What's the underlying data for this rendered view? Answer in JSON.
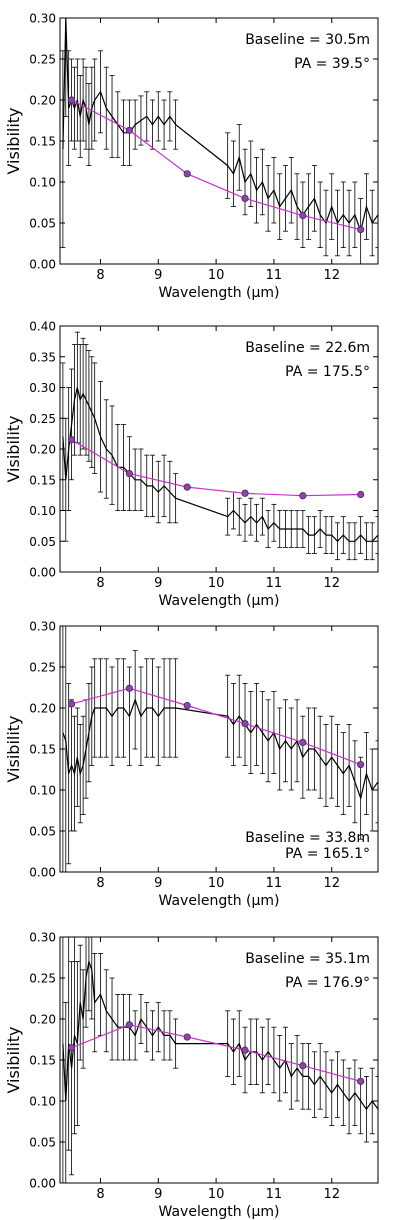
{
  "chart_data": [
    {
      "type": "line",
      "title": "",
      "xlabel": "Wavelength (μm)",
      "ylabel": "Visibility",
      "xlim": [
        7.3,
        12.8
      ],
      "ylim": [
        0.0,
        0.3
      ],
      "xticks": [
        8,
        9,
        10,
        11,
        12
      ],
      "yticks": [
        0.0,
        0.05,
        0.1,
        0.15,
        0.2,
        0.25,
        0.3
      ],
      "yticklabels": [
        "0.00",
        "0.05",
        "0.10",
        "0.15",
        "0.20",
        "0.25",
        "0.30"
      ],
      "grid": false,
      "annotations": [
        "Baseline = 30.5m",
        "PA = 39.5°"
      ],
      "annotation_anchor": "right",
      "series": [
        {
          "kind": "observed",
          "color": "#000000",
          "x": [
            7.35,
            7.4,
            7.45,
            7.5,
            7.55,
            7.6,
            7.65,
            7.7,
            7.75,
            7.8,
            7.85,
            7.9,
            8.0,
            8.1,
            8.2,
            8.3,
            8.4,
            8.5,
            8.6,
            8.7,
            8.8,
            8.9,
            9.0,
            9.1,
            9.2,
            9.3,
            10.2,
            10.3,
            10.4,
            10.5,
            10.6,
            10.7,
            10.8,
            10.9,
            11.0,
            11.1,
            11.2,
            11.3,
            11.4,
            11.5,
            11.6,
            11.7,
            11.8,
            11.9,
            12.0,
            12.1,
            12.2,
            12.3,
            12.4,
            12.5,
            12.6,
            12.7,
            12.8
          ],
          "y": [
            0.14,
            0.3,
            0.19,
            0.2,
            0.19,
            0.2,
            0.18,
            0.2,
            0.19,
            0.17,
            0.19,
            0.2,
            0.21,
            0.19,
            0.18,
            0.17,
            0.16,
            0.16,
            0.17,
            0.175,
            0.18,
            0.17,
            0.18,
            0.17,
            0.18,
            0.17,
            0.12,
            0.11,
            0.13,
            0.1,
            0.11,
            0.09,
            0.1,
            0.08,
            0.09,
            0.07,
            0.08,
            0.09,
            0.07,
            0.06,
            0.07,
            0.08,
            0.06,
            0.05,
            0.07,
            0.05,
            0.06,
            0.05,
            0.06,
            0.04,
            0.07,
            0.05,
            0.06
          ],
          "err": [
            0.12,
            0.12,
            0.07,
            0.05,
            0.05,
            0.05,
            0.05,
            0.05,
            0.05,
            0.05,
            0.05,
            0.05,
            0.05,
            0.05,
            0.05,
            0.04,
            0.04,
            0.04,
            0.03,
            0.03,
            0.03,
            0.03,
            0.03,
            0.03,
            0.03,
            0.03,
            0.04,
            0.04,
            0.04,
            0.04,
            0.04,
            0.04,
            0.04,
            0.04,
            0.04,
            0.04,
            0.04,
            0.04,
            0.04,
            0.04,
            0.04,
            0.04,
            0.04,
            0.04,
            0.04,
            0.04,
            0.04,
            0.04,
            0.04,
            0.04,
            0.04,
            0.04,
            0.04
          ]
        },
        {
          "kind": "model",
          "color": "#cc33cc",
          "marker_color": "#8e44ad",
          "x": [
            7.5,
            8.5,
            9.5,
            10.5,
            11.5,
            12.5
          ],
          "y": [
            0.2,
            0.163,
            0.11,
            0.08,
            0.059,
            0.042
          ]
        }
      ]
    },
    {
      "type": "line",
      "title": "",
      "xlabel": "Wavelength (μm)",
      "ylabel": "Visibility",
      "xlim": [
        7.3,
        12.8
      ],
      "ylim": [
        0.0,
        0.4
      ],
      "xticks": [
        8,
        9,
        10,
        11,
        12
      ],
      "yticks": [
        0.0,
        0.05,
        0.1,
        0.15,
        0.2,
        0.25,
        0.3,
        0.35,
        0.4
      ],
      "yticklabels": [
        "0.00",
        "0.05",
        "0.10",
        "0.15",
        "0.20",
        "0.25",
        "0.30",
        "0.35",
        "0.40"
      ],
      "grid": false,
      "annotations": [
        "Baseline = 22.6m",
        "PA = 175.5°"
      ],
      "annotation_anchor": "right",
      "series": [
        {
          "kind": "observed",
          "color": "#000000",
          "x": [
            7.35,
            7.4,
            7.45,
            7.5,
            7.55,
            7.6,
            7.65,
            7.7,
            7.75,
            7.8,
            7.85,
            7.9,
            8.0,
            8.1,
            8.2,
            8.3,
            8.4,
            8.5,
            8.6,
            8.7,
            8.8,
            8.9,
            9.0,
            9.1,
            9.2,
            9.3,
            10.2,
            10.3,
            10.4,
            10.5,
            10.6,
            10.7,
            10.8,
            10.9,
            11.0,
            11.1,
            11.2,
            11.3,
            11.4,
            11.5,
            11.6,
            11.7,
            11.8,
            11.9,
            12.0,
            12.1,
            12.2,
            12.3,
            12.4,
            12.5,
            12.6,
            12.7,
            12.8
          ],
          "y": [
            0.22,
            0.15,
            0.2,
            0.24,
            0.28,
            0.3,
            0.28,
            0.29,
            0.28,
            0.27,
            0.26,
            0.25,
            0.22,
            0.2,
            0.19,
            0.17,
            0.17,
            0.16,
            0.15,
            0.15,
            0.14,
            0.14,
            0.13,
            0.14,
            0.13,
            0.12,
            0.09,
            0.1,
            0.09,
            0.08,
            0.09,
            0.08,
            0.09,
            0.07,
            0.08,
            0.07,
            0.07,
            0.07,
            0.07,
            0.07,
            0.06,
            0.06,
            0.07,
            0.06,
            0.06,
            0.05,
            0.06,
            0.05,
            0.05,
            0.06,
            0.05,
            0.05,
            0.06
          ],
          "err": [
            0.12,
            0.1,
            0.1,
            0.09,
            0.09,
            0.09,
            0.09,
            0.09,
            0.09,
            0.09,
            0.09,
            0.09,
            0.09,
            0.08,
            0.08,
            0.07,
            0.07,
            0.06,
            0.05,
            0.05,
            0.05,
            0.05,
            0.05,
            0.05,
            0.05,
            0.04,
            0.03,
            0.03,
            0.03,
            0.03,
            0.03,
            0.03,
            0.03,
            0.03,
            0.03,
            0.03,
            0.03,
            0.03,
            0.03,
            0.03,
            0.03,
            0.03,
            0.03,
            0.03,
            0.03,
            0.03,
            0.03,
            0.03,
            0.03,
            0.03,
            0.03,
            0.03,
            0.03
          ]
        },
        {
          "kind": "model",
          "color": "#cc33cc",
          "marker_color": "#8e44ad",
          "x": [
            7.5,
            8.5,
            9.5,
            10.5,
            11.5,
            12.5
          ],
          "y": [
            0.215,
            0.16,
            0.138,
            0.128,
            0.124,
            0.126
          ]
        }
      ]
    },
    {
      "type": "line",
      "title": "",
      "xlabel": "Wavelength (μm)",
      "ylabel": "Visibility",
      "xlim": [
        7.3,
        12.8
      ],
      "ylim": [
        0.0,
        0.3
      ],
      "xticks": [
        8,
        9,
        10,
        11,
        12
      ],
      "yticks": [
        0.0,
        0.05,
        0.1,
        0.15,
        0.2,
        0.25,
        0.3
      ],
      "yticklabels": [
        "0.00",
        "0.05",
        "0.10",
        "0.15",
        "0.20",
        "0.25",
        "0.30"
      ],
      "grid": false,
      "annotations": [
        "Baseline = 33.8m",
        "PA = 165.1°"
      ],
      "annotation_anchor": "right-bottom",
      "series": [
        {
          "kind": "observed",
          "color": "#000000",
          "x": [
            7.35,
            7.4,
            7.45,
            7.5,
            7.55,
            7.6,
            7.65,
            7.7,
            7.75,
            7.8,
            7.85,
            7.9,
            8.0,
            8.1,
            8.2,
            8.3,
            8.4,
            8.5,
            8.6,
            8.7,
            8.8,
            8.9,
            9.0,
            9.1,
            9.2,
            9.3,
            10.2,
            10.3,
            10.4,
            10.5,
            10.6,
            10.7,
            10.8,
            10.9,
            11.0,
            11.1,
            11.2,
            11.3,
            11.4,
            11.5,
            11.6,
            11.7,
            11.8,
            11.9,
            12.0,
            12.1,
            12.2,
            12.3,
            12.4,
            12.5,
            12.6,
            12.7,
            12.8
          ],
          "y": [
            0.17,
            0.16,
            0.12,
            0.13,
            0.12,
            0.14,
            0.12,
            0.13,
            0.15,
            0.17,
            0.19,
            0.2,
            0.2,
            0.2,
            0.19,
            0.2,
            0.2,
            0.19,
            0.21,
            0.19,
            0.2,
            0.2,
            0.19,
            0.2,
            0.2,
            0.2,
            0.19,
            0.18,
            0.19,
            0.18,
            0.17,
            0.18,
            0.17,
            0.16,
            0.17,
            0.15,
            0.16,
            0.15,
            0.16,
            0.14,
            0.15,
            0.15,
            0.14,
            0.13,
            0.14,
            0.13,
            0.12,
            0.13,
            0.11,
            0.09,
            0.12,
            0.1,
            0.11
          ],
          "err": [
            0.3,
            0.2,
            0.11,
            0.08,
            0.07,
            0.06,
            0.06,
            0.06,
            0.06,
            0.06,
            0.06,
            0.06,
            0.06,
            0.06,
            0.06,
            0.06,
            0.06,
            0.06,
            0.06,
            0.06,
            0.06,
            0.06,
            0.06,
            0.06,
            0.06,
            0.06,
            0.05,
            0.05,
            0.05,
            0.05,
            0.05,
            0.05,
            0.05,
            0.05,
            0.05,
            0.05,
            0.05,
            0.05,
            0.05,
            0.05,
            0.05,
            0.05,
            0.05,
            0.05,
            0.05,
            0.05,
            0.05,
            0.05,
            0.05,
            0.05,
            0.05,
            0.05,
            0.05
          ]
        },
        {
          "kind": "model",
          "color": "#cc33cc",
          "marker_color": "#8e44ad",
          "x": [
            7.5,
            8.5,
            9.5,
            10.5,
            11.5,
            12.5
          ],
          "y": [
            0.205,
            0.224,
            0.203,
            0.181,
            0.158,
            0.131
          ]
        }
      ]
    },
    {
      "type": "line",
      "title": "",
      "xlabel": "Wavelength (μm)",
      "ylabel": "Visibility",
      "xlim": [
        7.3,
        12.8
      ],
      "ylim": [
        0.0,
        0.3
      ],
      "xticks": [
        8,
        9,
        10,
        11,
        12
      ],
      "yticks": [
        0.0,
        0.05,
        0.1,
        0.15,
        0.2,
        0.25,
        0.3
      ],
      "yticklabels": [
        "0.00",
        "0.05",
        "0.10",
        "0.15",
        "0.20",
        "0.25",
        "0.30"
      ],
      "grid": false,
      "annotations": [
        "Baseline = 35.1m",
        "PA = 176.9°"
      ],
      "annotation_anchor": "right",
      "series": [
        {
          "kind": "observed",
          "color": "#000000",
          "x": [
            7.35,
            7.4,
            7.45,
            7.5,
            7.55,
            7.6,
            7.65,
            7.7,
            7.75,
            7.8,
            7.85,
            7.9,
            8.0,
            8.1,
            8.2,
            8.3,
            8.4,
            8.5,
            8.6,
            8.7,
            8.8,
            8.9,
            9.0,
            9.1,
            9.2,
            9.3,
            10.2,
            10.3,
            10.4,
            10.5,
            10.6,
            10.7,
            10.8,
            10.9,
            11.0,
            11.1,
            11.2,
            11.3,
            11.4,
            11.5,
            11.6,
            11.7,
            11.8,
            11.9,
            12.0,
            12.1,
            12.2,
            12.3,
            12.4,
            12.5,
            12.6,
            12.7,
            12.8
          ],
          "y": [
            0.17,
            0.1,
            0.17,
            0.14,
            0.18,
            0.17,
            0.22,
            0.2,
            0.25,
            0.27,
            0.26,
            0.22,
            0.23,
            0.21,
            0.2,
            0.19,
            0.19,
            0.19,
            0.18,
            0.2,
            0.19,
            0.18,
            0.19,
            0.18,
            0.18,
            0.17,
            0.17,
            0.16,
            0.17,
            0.15,
            0.16,
            0.16,
            0.15,
            0.16,
            0.15,
            0.14,
            0.15,
            0.13,
            0.14,
            0.13,
            0.13,
            0.12,
            0.13,
            0.12,
            0.11,
            0.12,
            0.11,
            0.1,
            0.11,
            0.1,
            0.09,
            0.1,
            0.09
          ],
          "err": [
            0.2,
            0.12,
            0.13,
            0.13,
            0.12,
            0.1,
            0.07,
            0.06,
            0.06,
            0.06,
            0.06,
            0.06,
            0.05,
            0.05,
            0.05,
            0.04,
            0.04,
            0.04,
            0.03,
            0.03,
            0.03,
            0.03,
            0.03,
            0.03,
            0.03,
            0.03,
            0.04,
            0.04,
            0.04,
            0.04,
            0.04,
            0.04,
            0.04,
            0.04,
            0.04,
            0.04,
            0.04,
            0.04,
            0.04,
            0.04,
            0.04,
            0.04,
            0.04,
            0.04,
            0.04,
            0.04,
            0.04,
            0.04,
            0.04,
            0.04,
            0.04,
            0.04,
            0.04
          ]
        },
        {
          "kind": "model",
          "color": "#cc33cc",
          "marker_color": "#8e44ad",
          "x": [
            7.5,
            8.5,
            9.5,
            10.5,
            11.5,
            12.5
          ],
          "y": [
            0.165,
            0.193,
            0.178,
            0.162,
            0.143,
            0.124
          ]
        }
      ]
    }
  ]
}
